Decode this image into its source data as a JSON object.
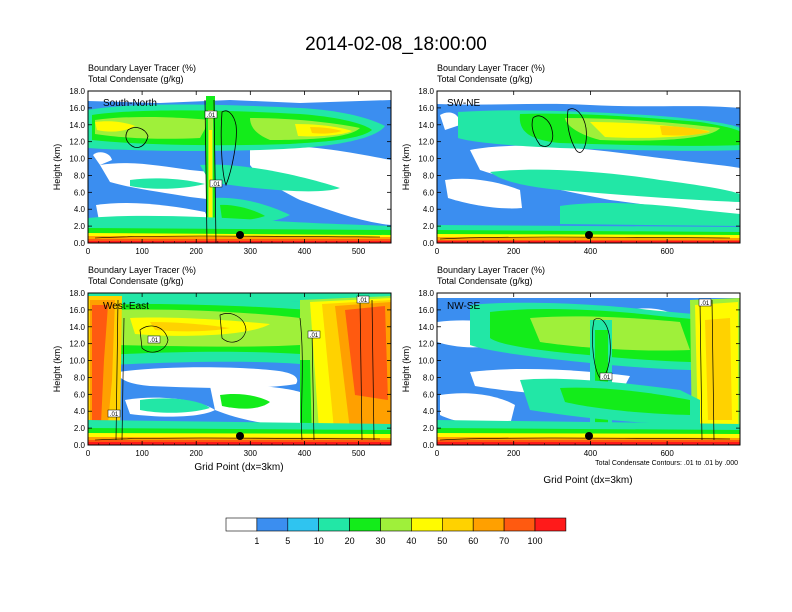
{
  "title": "2014-02-08_18:00:00",
  "panel_subtitle_1": "Boundary Layer Tracer   (%)",
  "panel_subtitle_2": "Total Condensate   (g/kg)",
  "xlabel": "Grid Point (dx=3km)",
  "ylabel": "Height (km)",
  "contour_note": "Total Condensate Contours: .01 to .01 by .000",
  "contour_label": ".01",
  "colorbar": {
    "colors": [
      "#ffffff",
      "#3b8ef0",
      "#2fc4f0",
      "#22e7a6",
      "#13ec1a",
      "#9ff03a",
      "#fffb00",
      "#ffd200",
      "#ffa000",
      "#ff5a10",
      "#ff1a1a"
    ],
    "labels": [
      "1",
      "5",
      "10",
      "20",
      "30",
      "40",
      "50",
      "60",
      "70",
      "100"
    ]
  },
  "chart_data": [
    {
      "type": "heatmap",
      "panel": "top-left",
      "name": "South-North",
      "title": "Boundary Layer Tracer (%) / Total Condensate (g/kg)",
      "xlim": [
        0,
        560
      ],
      "xticks": [
        0,
        100,
        200,
        300,
        400,
        500
      ],
      "ylim": [
        0,
        18
      ],
      "yticks": [
        "0.0",
        "2.0",
        "4.0",
        "6.0",
        "8.0",
        "10.0",
        "12.0",
        "14.0",
        "16.0",
        "18.0"
      ],
      "ylabel": "Height (km)",
      "xlabel": "",
      "marker_x": 278,
      "contour_labels": [
        ".01",
        ".01"
      ]
    },
    {
      "type": "heatmap",
      "panel": "top-right",
      "name": "SW-NE",
      "title": "Boundary Layer Tracer (%) / Total Condensate (g/kg)",
      "xlim": [
        0,
        790
      ],
      "xticks": [
        0,
        200,
        400,
        600
      ],
      "ylim": [
        0,
        18
      ],
      "yticks": [
        "0.0",
        "2.0",
        "4.0",
        "6.0",
        "8.0",
        "10.0",
        "12.0",
        "14.0",
        "16.0",
        "18.0"
      ],
      "ylabel": "Height (km)",
      "xlabel": "",
      "marker_x": 395,
      "contour_labels": []
    },
    {
      "type": "heatmap",
      "panel": "bottom-left",
      "name": "West-East",
      "title": "Boundary Layer Tracer (%) / Total Condensate (g/kg)",
      "xlim": [
        0,
        560
      ],
      "xticks": [
        0,
        100,
        200,
        300,
        400,
        500
      ],
      "ylim": [
        0,
        18
      ],
      "yticks": [
        "0.0",
        "2.0",
        "4.0",
        "6.0",
        "8.0",
        "10.0",
        "12.0",
        "14.0",
        "16.0",
        "18.0"
      ],
      "ylabel": "Height (km)",
      "xlabel": "Grid Point (dx=3km)",
      "marker_x": 278,
      "contour_labels": [
        ".01",
        ".01",
        ".01",
        ".01"
      ]
    },
    {
      "type": "heatmap",
      "panel": "bottom-right",
      "name": "NW-SE",
      "title": "Boundary Layer Tracer (%) / Total Condensate (g/kg)",
      "xlim": [
        0,
        790
      ],
      "xticks": [
        0,
        200,
        400,
        600
      ],
      "ylim": [
        0,
        18
      ],
      "yticks": [
        "0.0",
        "2.0",
        "4.0",
        "6.0",
        "8.0",
        "10.0",
        "12.0",
        "14.0",
        "16.0",
        "18.0"
      ],
      "ylabel": "Height (km)",
      "xlabel": "Grid Point (dx=3km)",
      "marker_x": 395,
      "contour_labels": [
        ".01",
        ".01"
      ]
    }
  ]
}
